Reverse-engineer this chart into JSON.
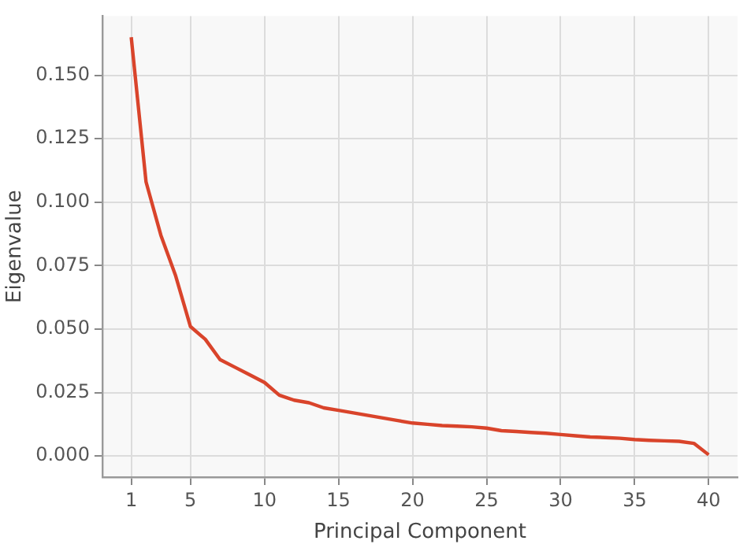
{
  "chart_data": {
    "type": "line",
    "xlabel": "Principal Component",
    "ylabel": "Eigenvalue",
    "x": [
      1,
      2,
      3,
      4,
      5,
      6,
      7,
      8,
      9,
      10,
      11,
      12,
      13,
      14,
      15,
      16,
      17,
      18,
      19,
      20,
      21,
      22,
      23,
      24,
      25,
      26,
      27,
      28,
      29,
      30,
      31,
      32,
      33,
      34,
      35,
      36,
      37,
      38,
      39,
      40
    ],
    "series": [
      {
        "color": "#d9442b",
        "values": [
          0.165,
          0.108,
          0.087,
          0.071,
          0.051,
          0.046,
          0.038,
          0.035,
          0.032,
          0.029,
          0.024,
          0.022,
          0.021,
          0.019,
          0.018,
          0.017,
          0.016,
          0.015,
          0.014,
          0.013,
          0.0125,
          0.012,
          0.0118,
          0.0115,
          0.011,
          0.01,
          0.0097,
          0.0093,
          0.009,
          0.0085,
          0.008,
          0.0075,
          0.0073,
          0.007,
          0.0065,
          0.0062,
          0.006,
          0.0058,
          0.005,
          0.0005
        ]
      }
    ],
    "xlim": [
      -0.95,
      41.95
    ],
    "xticks": [
      1,
      5,
      10,
      15,
      20,
      25,
      30,
      35,
      40
    ],
    "ylim": [
      -0.0083,
      0.1733
    ],
    "yticks": [
      {
        "value": 0,
        "label": "0.000"
      },
      {
        "value": 0.025,
        "label": "0.025"
      },
      {
        "value": 0.05,
        "label": "0.050"
      },
      {
        "value": 0.075,
        "label": "0.075"
      },
      {
        "value": 0.1,
        "label": "0.100"
      },
      {
        "value": 0.125,
        "label": "0.125"
      },
      {
        "value": 0.15,
        "label": "0.150"
      }
    ],
    "grid": true,
    "legend": false,
    "marker": "none",
    "line_style": "solid"
  }
}
